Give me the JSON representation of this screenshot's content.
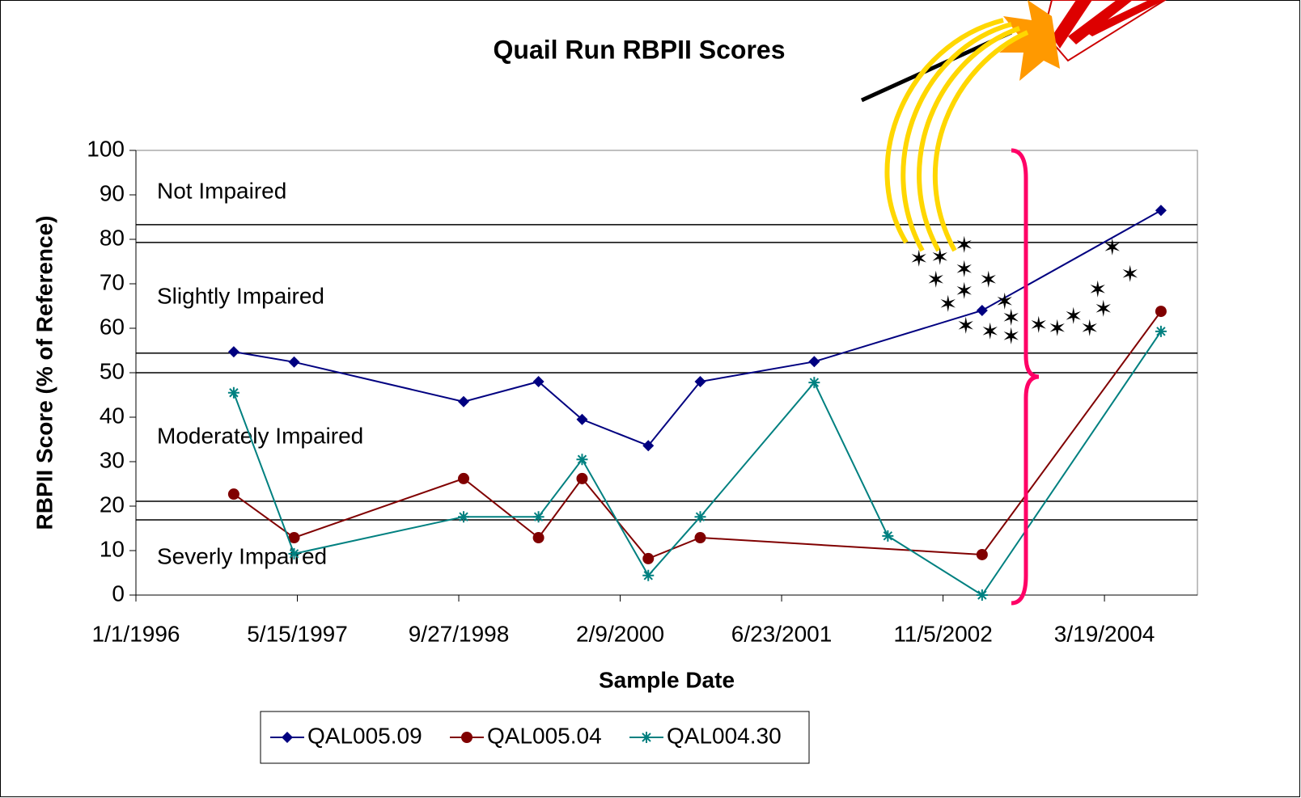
{
  "chart_data": {
    "type": "line",
    "title": "Quail Run RBPII Scores",
    "x_label": "Sample Date",
    "y_label": "RBPII Score (% of Reference)",
    "xlim": [
      "1/1/1996",
      "1/1/2005"
    ],
    "xticks": [
      "1/1/1996",
      "5/15/1997",
      "9/27/1998",
      "2/9/2000",
      "6/23/2001",
      "11/5/2002",
      "3/19/2004"
    ],
    "ylim": [
      0,
      100
    ],
    "yticks": [
      0,
      10,
      20,
      30,
      40,
      50,
      60,
      70,
      80,
      90,
      100
    ],
    "thresholds": [
      83.3,
      79.3,
      54.4,
      50,
      21.1,
      16.9
    ],
    "annotations": [
      "Not Impaired",
      "Slightly Impaired",
      "Moderately Impaired",
      "Severly Impaired"
    ],
    "series": [
      {
        "name": "QAL005.09",
        "color": "#000080",
        "marker": "diamond",
        "x": [
          "10/30/1996",
          "5/5/1997",
          "10/12/1998",
          "6/1/1999",
          "10/14/1999",
          "5/6/2000",
          "10/14/2000",
          "10/2/2001",
          "3/6/2003",
          "9/10/2004"
        ],
        "values": [
          54.7,
          52.4,
          43.5,
          48,
          39.5,
          33.6,
          48,
          52.5,
          64,
          86.5
        ]
      },
      {
        "name": "QAL005.04",
        "color": "#800000",
        "marker": "circle",
        "x": [
          "10/30/1996",
          "5/5/1997",
          "10/12/1998",
          "6/1/1999",
          "10/14/1999",
          "5/6/2000",
          "10/14/2000",
          "3/6/2003",
          "9/10/2004"
        ],
        "values": [
          22.7,
          12.9,
          26.2,
          12.9,
          26.2,
          8.2,
          12.9,
          9.1,
          63.8
        ]
      },
      {
        "name": "QAL004.30",
        "color": "#008080",
        "marker": "asterisk",
        "x": [
          "10/30/1996",
          "5/5/1997",
          "10/12/1998",
          "6/1/1999",
          "10/14/1999",
          "5/6/2000",
          "10/14/2000",
          "10/2/2001",
          "5/18/2002",
          "3/6/2003",
          "9/10/2004"
        ],
        "values": [
          45.5,
          9.3,
          17.6,
          17.6,
          30.5,
          4.4,
          17.6,
          47.8,
          13.3,
          0,
          59.3
        ]
      }
    ]
  }
}
